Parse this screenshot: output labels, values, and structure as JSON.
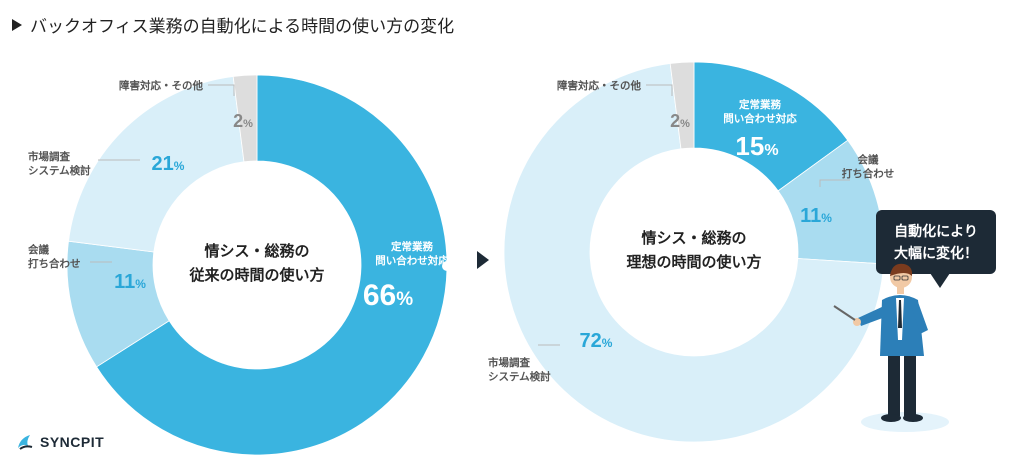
{
  "page": {
    "title": "バックオフィス業務の自動化による時間の使い方の変化",
    "logo_text": "SYNCPIT"
  },
  "colors": {
    "main": "#3ab4e0",
    "meeting": "#a9dcf0",
    "research": "#d9eff9",
    "other": "#dddddd",
    "text_dark": "#222222",
    "label_gray": "#555555",
    "accent_text": "#2aa7d8",
    "bubble": "#1d2a36"
  },
  "chart_data": [
    {
      "type": "pie",
      "title": "情シス・総務の\n従来の時間の使い方",
      "slices": [
        {
          "label": "定常業務\n問い合わせ対応",
          "value": 66,
          "display": "66",
          "color_key": "main"
        },
        {
          "label": "会議\n打ち合わせ",
          "value": 11,
          "display": "11",
          "color_key": "meeting"
        },
        {
          "label": "市場調査\nシステム検討",
          "value": 21,
          "display": "21",
          "color_key": "research"
        },
        {
          "label": "障害対応・その他",
          "value": 2,
          "display": "2",
          "color_key": "other"
        }
      ],
      "unit": "%"
    },
    {
      "type": "pie",
      "title": "情シス・総務の\n理想の時間の使い方",
      "slices": [
        {
          "label": "定常業務\n問い合わせ対応",
          "value": 15,
          "display": "15",
          "color_key": "main"
        },
        {
          "label": "会議\n打ち合わせ",
          "value": 11,
          "display": "11",
          "color_key": "meeting"
        },
        {
          "label": "市場調査\nシステム検討",
          "value": 72,
          "display": "72",
          "color_key": "research"
        },
        {
          "label": "障害対応・その他",
          "value": 2,
          "display": "2",
          "color_key": "other"
        }
      ],
      "unit": "%"
    }
  ],
  "callout": {
    "text": "自動化により\n大幅に変化！"
  }
}
